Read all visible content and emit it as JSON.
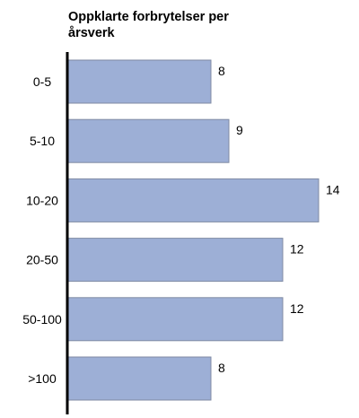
{
  "chart_data": {
    "type": "bar",
    "orientation": "horizontal",
    "title": "Oppklarte forbrytelser per årsverk",
    "categories": [
      "0-5",
      "5-10",
      "10-20",
      "20-50",
      "50-100",
      ">100"
    ],
    "values": [
      8,
      9,
      14,
      12,
      12,
      8
    ],
    "xlim": [
      0,
      15
    ],
    "grid": false,
    "legend": "none",
    "colors": {
      "bar_fill": "#9dafd6",
      "bar_stroke": "#7f8aa3",
      "axis": "#000000",
      "text": "#000000"
    }
  }
}
